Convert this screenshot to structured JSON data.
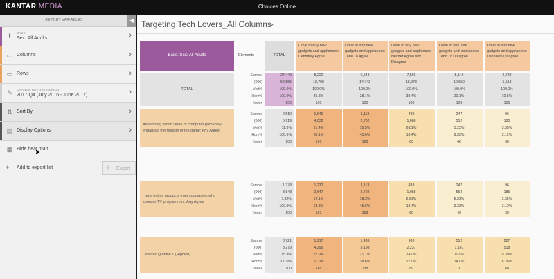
{
  "app": {
    "logo_main": "KANTAR",
    "logo_accent": "MEDIA",
    "title": "Choices Online"
  },
  "sidebar": {
    "header": "REPORT VARIABLES",
    "base": {
      "small": "BASE",
      "value": "Sex: All Adults"
    },
    "columns": "Columns",
    "rows": "Rows",
    "period": {
      "small": "CHANGE REPORT PERIOD",
      "value": "2017 Q4 (July 2016 - June 2017)"
    },
    "sort_by": "Sort By",
    "display_options": "Display Options",
    "hide_heatmap": "Hide heat map",
    "add_export": "Add to export list",
    "export": "Export"
  },
  "report": {
    "title": "Targeting Tech Lovers_All Columns",
    "base_label": "Base:  Sex: All Adults",
    "elements_label": "Elements",
    "total_label": "TOTAL",
    "columns": [
      "I love to buy new gadgets and appliances: Definitely Agree",
      "I love to buy new gadgets and appliances: Tend To Agree",
      "I love to buy new gadgets and appliances: Neither Agree Nor Disagree",
      "I love to buy new gadgets and appliances: Tend To Disagree",
      "I love to buy new gadgets and appliances: Definitely Disagree"
    ],
    "elements": [
      "Sample",
      "(000)",
      "Vert%",
      "Horz%",
      "Index"
    ],
    "rows": [
      {
        "label": "TOTAL",
        "total": [
          "24,449",
          "52,555",
          "100.0%",
          "100.0%",
          "100"
        ],
        "cols": [
          [
            "8,222",
            "18,798",
            "100.0%",
            "35.8%",
            "100"
          ],
          [
            "6,543",
            "14,743",
            "100.0%",
            "28.1%",
            "100"
          ],
          [
            "7,593",
            "15,978",
            "100.0%",
            "30.4%",
            "100"
          ],
          [
            "5,146",
            "10,559",
            "100.0%",
            "20.1%",
            "100"
          ],
          [
            "2,788",
            "5,518",
            "100.0%",
            "10.5%",
            "100"
          ]
        ]
      },
      {
        "label": "Advertising within video or computer gameplay enhances the realism of the game: Any Agree",
        "total": [
          "2,510",
          "5,919",
          "11.3%",
          "100.0%",
          "100"
        ],
        "cols": [
          [
            "1,649",
            "4,032",
            "21.4%",
            "68.1%",
            "190"
          ],
          [
            "1,113",
            "2,702",
            "18.3%",
            "45.6%",
            "163"
          ],
          [
            "489",
            "1,088",
            "6.81%",
            "18.4%",
            "60"
          ],
          [
            "247",
            "552",
            "5.23%",
            "9.33%",
            "46"
          ],
          [
            "96",
            "185",
            "3.35%",
            "3.12%",
            "30"
          ]
        ]
      },
      {
        "label": "I tend to buy products from companies who sponsor TV programmes: Any Agree",
        "total": [
          "1,778",
          "3,848",
          "7.32%",
          "100.0%",
          "100"
        ],
        "cols": [
          [
            "1,232",
            "2,647",
            "14.1%",
            "68.8%",
            "192"
          ],
          [
            "1,113",
            "2,702",
            "18.3%",
            "45.6%",
            "163"
          ],
          [
            "489",
            "1,088",
            "6.81%",
            "18.4%",
            "60"
          ],
          [
            "247",
            "552",
            "5.23%",
            "9.33%",
            "46"
          ],
          [
            "96",
            "185",
            "3.35%",
            "3.12%",
            "30"
          ]
        ]
      },
      {
        "label": "Cinema: Quintile 1 (Highest)",
        "total": [
          "3,721",
          "8,279",
          "15.8%",
          "100.0%",
          "100"
        ],
        "cols": [
          [
            "1,917",
            "4,296",
            "22.9%",
            "51.9%",
            "145"
          ],
          [
            "1,439",
            "3,198",
            "21.7%",
            "38.6%",
            "138"
          ],
          [
            "983",
            "2,237",
            "14.0%",
            "27.0%",
            "89"
          ],
          [
            "552",
            "1,161",
            "11.0%",
            "14.0%",
            "70"
          ],
          [
            "227",
            "518",
            "9.39%",
            "6.26%",
            "60"
          ]
        ]
      }
    ]
  },
  "colors": {
    "base_purple": "#9a5a9c",
    "total_purple": "#d9b5da",
    "heat_strong": "#f0b47e",
    "heat_mid": "#f4c995",
    "heat_light": "#f7e0ae",
    "heat_pale": "#f9eed0",
    "row_label_bg": "#f3d2a8"
  }
}
